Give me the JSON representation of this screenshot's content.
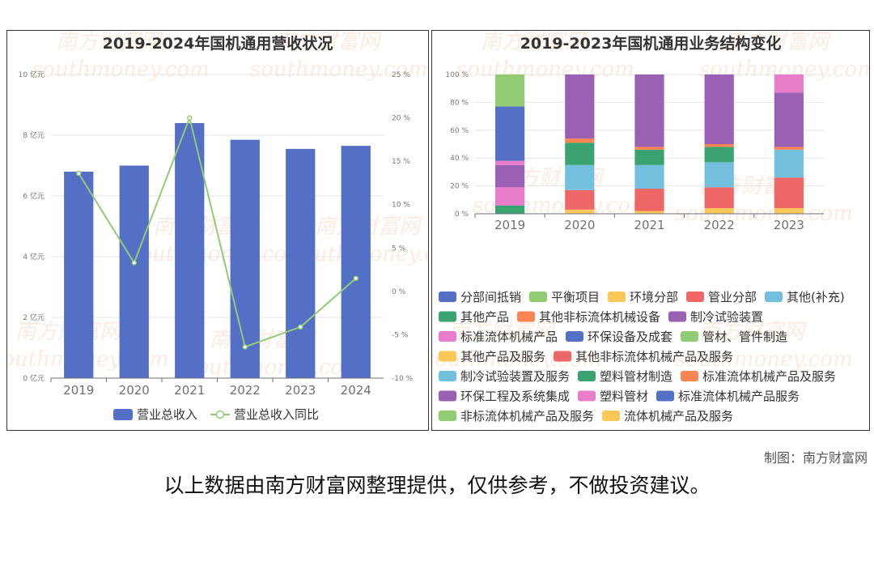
{
  "chart_data": [
    {
      "type": "bar",
      "title": "2019-2024年国机通用营收状况",
      "categories": [
        "2019",
        "2020",
        "2021",
        "2022",
        "2023",
        "2024"
      ],
      "series": [
        {
          "name": "营业总收入",
          "type": "bar",
          "axis": "left",
          "color": "#5470c6",
          "values": [
            6.8,
            7.0,
            8.4,
            7.85,
            7.55,
            7.65
          ]
        },
        {
          "name": "营业总收入同比",
          "type": "line",
          "axis": "right",
          "color": "#91cc75",
          "values": [
            13.6,
            3.3,
            20.0,
            -6.4,
            -4.1,
            1.5
          ]
        }
      ],
      "ylim": [
        0,
        10
      ],
      "y_ticks": [
        "0 亿元",
        "2 亿元",
        "4 亿元",
        "6 亿元",
        "8 亿元",
        "10 亿元"
      ],
      "y2lim": [
        -10,
        25
      ],
      "y2_ticks": [
        "-10 %",
        "-5 %",
        "0 %",
        "5 %",
        "10 %",
        "15 %",
        "20 %",
        "25 %"
      ],
      "grid": true,
      "legend_position": "bottom"
    },
    {
      "type": "bar",
      "stacked": true,
      "title": "2019-2023年国机通用业务结构变化",
      "categories": [
        "2019",
        "2020",
        "2021",
        "2022",
        "2023"
      ],
      "ylim": [
        0,
        100
      ],
      "y_ticks": [
        "0 %",
        "20 %",
        "40 %",
        "60 %",
        "80 %",
        "100 %"
      ],
      "grid": true,
      "legend_position": "bottom",
      "legend": [
        {
          "name": "分部间抵销",
          "color": "#5470c6"
        },
        {
          "name": "平衡项目",
          "color": "#91cc75"
        },
        {
          "name": "环境分部",
          "color": "#fac858"
        },
        {
          "name": "管业分部",
          "color": "#ee6666"
        },
        {
          "name": "其他(补充)",
          "color": "#73c0de"
        },
        {
          "name": "其他产品",
          "color": "#3ba272"
        },
        {
          "name": "其他非标流体机械设备",
          "color": "#fc8452"
        },
        {
          "name": "制冷试验装置",
          "color": "#9a60b4"
        },
        {
          "name": "标准流体机械产品",
          "color": "#ea7ccc"
        },
        {
          "name": "环保设备及成套",
          "color": "#5470c6"
        },
        {
          "name": "管材、管件制造",
          "color": "#91cc75"
        },
        {
          "name": "其他产品及服务",
          "color": "#fac858"
        },
        {
          "name": "其他非标流体机械产品及服务",
          "color": "#ee6666"
        },
        {
          "name": "制冷试验装置及服务",
          "color": "#73c0de"
        },
        {
          "name": "塑料管材制造",
          "color": "#3ba272"
        },
        {
          "name": "标准流体机械产品及服务",
          "color": "#fc8452"
        },
        {
          "name": "环保工程及系统集成",
          "color": "#9a60b4"
        },
        {
          "name": "塑料管材",
          "color": "#ea7ccc"
        },
        {
          "name": "标准流体机械产品服务",
          "color": "#5470c6"
        },
        {
          "name": "非标流体机械产品及服务",
          "color": "#91cc75"
        },
        {
          "name": "流体机械产品及服务",
          "color": "#fac858"
        }
      ],
      "stacks": [
        {
          "category": "2019",
          "segments": [
            {
              "name": "其他产品",
              "value": 6
            },
            {
              "name": "标准流体机械产品",
              "value": 13
            },
            {
              "name": "制冷试验装置",
              "value": 16
            },
            {
              "name": "标准流体机械产品",
              "value": 3
            },
            {
              "name": "环保设备及成套",
              "value": 39
            },
            {
              "name": "管材、管件制造",
              "value": 23
            }
          ]
        },
        {
          "category": "2020",
          "segments": [
            {
              "name": "其他产品及服务",
              "value": 3
            },
            {
              "name": "其他非标流体机械产品及服务",
              "value": 14
            },
            {
              "name": "制冷试验装置及服务",
              "value": 18
            },
            {
              "name": "塑料管材制造",
              "value": 16
            },
            {
              "name": "标准流体机械产品及服务",
              "value": 3
            },
            {
              "name": "环保工程及系统集成",
              "value": 46
            }
          ]
        },
        {
          "category": "2021",
          "segments": [
            {
              "name": "其他产品及服务",
              "value": 2
            },
            {
              "name": "其他非标流体机械产品及服务",
              "value": 16
            },
            {
              "name": "制冷试验装置及服务",
              "value": 17
            },
            {
              "name": "塑料管材制造",
              "value": 11
            },
            {
              "name": "标准流体机械产品及服务",
              "value": 2
            },
            {
              "name": "环保工程及系统集成",
              "value": 52
            }
          ]
        },
        {
          "category": "2022",
          "segments": [
            {
              "name": "其他产品及服务",
              "value": 4
            },
            {
              "name": "其他非标流体机械产品及服务",
              "value": 15
            },
            {
              "name": "制冷试验装置及服务",
              "value": 18
            },
            {
              "name": "塑料管材制造",
              "value": 11
            },
            {
              "name": "标准流体机械产品及服务",
              "value": 2
            },
            {
              "name": "环保工程及系统集成",
              "value": 50
            }
          ]
        },
        {
          "category": "2023",
          "segments": [
            {
              "name": "其他产品及服务",
              "value": 4
            },
            {
              "name": "其他非标流体机械产品及服务",
              "value": 22
            },
            {
              "name": "制冷试验装置及服务",
              "value": 20
            },
            {
              "name": "标准流体机械产品及服务",
              "value": 2
            },
            {
              "name": "环保工程及系统集成",
              "value": 39
            },
            {
              "name": "塑料管材",
              "value": 13
            }
          ]
        }
      ]
    }
  ],
  "watermark": {
    "text": "南方财富网",
    "url": "southmoney.com"
  },
  "footer": {
    "credit": "制图：南方财富网",
    "disclaimer": "以上数据由南方财富网整理提供，仅供参考，不做投资建议。"
  }
}
